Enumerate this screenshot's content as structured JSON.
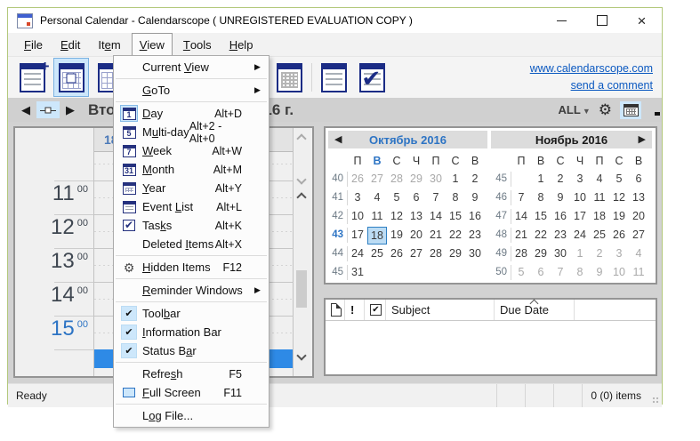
{
  "window": {
    "title": "Personal Calendar - Calendarscope ( UNREGISTERED EVALUATION COPY )"
  },
  "menubar": [
    {
      "label": "File",
      "u": 0
    },
    {
      "label": "Edit",
      "u": 0
    },
    {
      "label": "Item",
      "u": 2
    },
    {
      "label": "View",
      "u": 0,
      "open": true
    },
    {
      "label": "Tools",
      "u": 0
    },
    {
      "label": "Help",
      "u": 0
    }
  ],
  "toolbar": {
    "links": [
      {
        "label": "www.calendarscope.com"
      },
      {
        "label": "send a comment"
      }
    ],
    "buttons": [
      "new-event",
      "day-view",
      "multi-day-view",
      "week-view",
      "month-view",
      "year-view",
      "event-list-view",
      "tasks-view"
    ]
  },
  "infobar": {
    "title": "Вторник, 18 Октября 2016 г.",
    "filter_label": "ALL",
    "icons": [
      "prev-arrow-icon",
      "today-icon",
      "next-arrow-icon",
      "gear-icon",
      "calendar-icon",
      "binoculars-icon"
    ]
  },
  "view_menu": [
    {
      "label": "Current View",
      "u": 8,
      "submenu": true
    },
    {
      "sep": true
    },
    {
      "label": "GoTo",
      "u": 0,
      "submenu": true
    },
    {
      "sep": true
    },
    {
      "label": "Day",
      "u": 0,
      "shortcut": "Alt+D",
      "icon": "cal-1",
      "icon_selected": true
    },
    {
      "label": "Multi-day",
      "u": 1,
      "shortcut": "Alt+2 - Alt+0",
      "icon": "cal-5"
    },
    {
      "label": "Week",
      "u": 0,
      "shortcut": "Alt+W",
      "icon": "cal-7"
    },
    {
      "label": "Month",
      "u": 0,
      "shortcut": "Alt+M",
      "icon": "cal-31"
    },
    {
      "label": "Year",
      "u": 0,
      "shortcut": "Alt+Y",
      "icon": "cal-grid"
    },
    {
      "label": "Event List",
      "u": 6,
      "shortcut": "Alt+L",
      "icon": "list"
    },
    {
      "label": "Tasks",
      "u": 3,
      "shortcut": "Alt+K",
      "icon": "task"
    },
    {
      "label": "Deleted Items",
      "u": 8,
      "shortcut": "Alt+X"
    },
    {
      "sep": true
    },
    {
      "label": "Hidden Items",
      "u": 0,
      "shortcut": "F12",
      "icon": "gear"
    },
    {
      "sep": true
    },
    {
      "label": "Reminder Windows",
      "u": 0,
      "submenu": true
    },
    {
      "sep": true
    },
    {
      "label": "Toolbar",
      "u": 4,
      "checked": true
    },
    {
      "label": "Information Bar",
      "u": 0,
      "checked": true
    },
    {
      "label": "Status Bar",
      "u": 8,
      "checked": true
    },
    {
      "sep": true
    },
    {
      "label": "Refresh",
      "u": 5,
      "shortcut": "F5"
    },
    {
      "label": "Full Screen",
      "u": 0,
      "shortcut": "F11",
      "icon": "screen"
    },
    {
      "sep": true
    },
    {
      "label": "Log File...",
      "u": 1
    }
  ],
  "dayview": {
    "date_number": "18",
    "hours": [
      {
        "h": "11",
        "m": "00"
      },
      {
        "h": "12",
        "m": "00"
      },
      {
        "h": "13",
        "m": "00"
      },
      {
        "h": "14",
        "m": "00"
      },
      {
        "h": "15",
        "m": "00",
        "current": true
      }
    ]
  },
  "minicalendar": {
    "day_headers": [
      "П",
      "В",
      "С",
      "Ч",
      "П",
      "С",
      "В"
    ],
    "months": [
      {
        "name": "october",
        "title": "Октябрь 2016",
        "current": true,
        "highlight_dow": 1,
        "weeks": [
          {
            "w": "40",
            "days": [
              {
                "d": "26",
                "m": 1
              },
              {
                "d": "27",
                "m": 1
              },
              {
                "d": "28",
                "m": 1
              },
              {
                "d": "29",
                "m": 1
              },
              {
                "d": "30",
                "m": 1
              },
              {
                "d": "1"
              },
              {
                "d": "2"
              }
            ]
          },
          {
            "w": "41",
            "days": [
              {
                "d": "3"
              },
              {
                "d": "4"
              },
              {
                "d": "5"
              },
              {
                "d": "6"
              },
              {
                "d": "7"
              },
              {
                "d": "8"
              },
              {
                "d": "9"
              }
            ]
          },
          {
            "w": "42",
            "days": [
              {
                "d": "10"
              },
              {
                "d": "11"
              },
              {
                "d": "12"
              },
              {
                "d": "13"
              },
              {
                "d": "14"
              },
              {
                "d": "15"
              },
              {
                "d": "16"
              }
            ]
          },
          {
            "w": "43",
            "cur": 1,
            "days": [
              {
                "d": "17"
              },
              {
                "d": "18",
                "sel": 1
              },
              {
                "d": "19"
              },
              {
                "d": "20"
              },
              {
                "d": "21"
              },
              {
                "d": "22"
              },
              {
                "d": "23"
              }
            ]
          },
          {
            "w": "44",
            "days": [
              {
                "d": "24"
              },
              {
                "d": "25"
              },
              {
                "d": "26"
              },
              {
                "d": "27"
              },
              {
                "d": "28"
              },
              {
                "d": "29"
              },
              {
                "d": "30"
              }
            ]
          },
          {
            "w": "45",
            "days": [
              {
                "d": "31"
              },
              {
                "d": ""
              },
              {
                "d": ""
              },
              {
                "d": ""
              },
              {
                "d": ""
              },
              {
                "d": ""
              },
              {
                "d": ""
              }
            ]
          }
        ]
      },
      {
        "name": "november",
        "title": "Ноябрь 2016",
        "weeks": [
          {
            "w": "45",
            "days": [
              {
                "d": ""
              },
              {
                "d": "1"
              },
              {
                "d": "2"
              },
              {
                "d": "3"
              },
              {
                "d": "4"
              },
              {
                "d": "5"
              },
              {
                "d": "6"
              }
            ]
          },
          {
            "w": "46",
            "days": [
              {
                "d": "7"
              },
              {
                "d": "8"
              },
              {
                "d": "9"
              },
              {
                "d": "10"
              },
              {
                "d": "11"
              },
              {
                "d": "12"
              },
              {
                "d": "13"
              }
            ]
          },
          {
            "w": "47",
            "days": [
              {
                "d": "14"
              },
              {
                "d": "15"
              },
              {
                "d": "16"
              },
              {
                "d": "17"
              },
              {
                "d": "18"
              },
              {
                "d": "19"
              },
              {
                "d": "20"
              }
            ]
          },
          {
            "w": "48",
            "days": [
              {
                "d": "21"
              },
              {
                "d": "22"
              },
              {
                "d": "23"
              },
              {
                "d": "24"
              },
              {
                "d": "25"
              },
              {
                "d": "26"
              },
              {
                "d": "27"
              }
            ]
          },
          {
            "w": "49",
            "days": [
              {
                "d": "28"
              },
              {
                "d": "29"
              },
              {
                "d": "30"
              },
              {
                "d": "1",
                "m": 1
              },
              {
                "d": "2",
                "m": 1
              },
              {
                "d": "3",
                "m": 1
              },
              {
                "d": "4",
                "m": 1
              }
            ]
          },
          {
            "w": "50",
            "days": [
              {
                "d": "5",
                "m": 1
              },
              {
                "d": "6",
                "m": 1
              },
              {
                "d": "7",
                "m": 1
              },
              {
                "d": "8",
                "m": 1
              },
              {
                "d": "9",
                "m": 1
              },
              {
                "d": "10",
                "m": 1
              },
              {
                "d": "11",
                "m": 1
              }
            ]
          }
        ]
      }
    ]
  },
  "tasks": {
    "columns": {
      "subject": "Subject",
      "due_date": "Due Date"
    },
    "header_icons": [
      "page-icon",
      "priority-icon",
      "checkbox-icon"
    ],
    "sort": {
      "column": "Due Date",
      "direction": "asc"
    }
  },
  "statusbar": {
    "status": "Ready",
    "items_count": "0 (0) items"
  }
}
